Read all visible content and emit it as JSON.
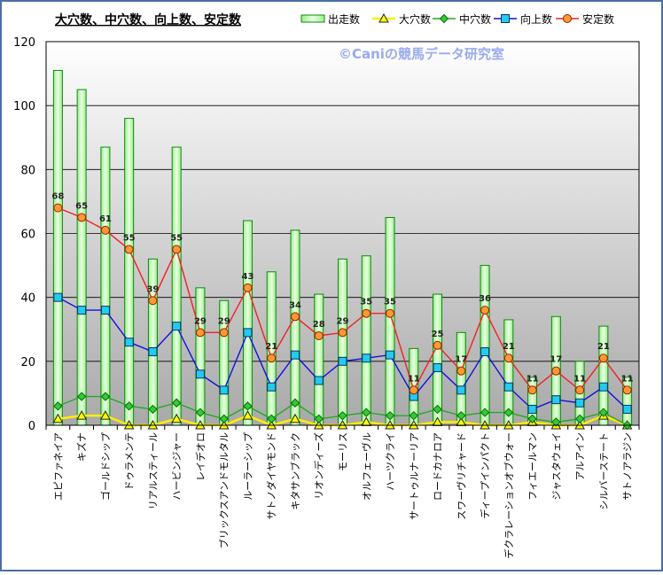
{
  "chart_data": {
    "type": "bar+line",
    "title": "大穴数、中穴数、向上数、安定数",
    "watermark": "©Caniの競馬データ研究室",
    "ylim": [
      0,
      120
    ],
    "y_ticks": [
      "0",
      "20",
      "40",
      "60",
      "80",
      "100",
      "120"
    ],
    "grid": true,
    "legend_position": "top-right",
    "categories": [
      "エピファネイア",
      "キズナ",
      "ゴールドシップ",
      "ドゥラメンテ",
      "リアルスティール",
      "ハービンジャー",
      "レイデオロ",
      "ブリックスアンドモルタル",
      "ルーラーシップ",
      "サトノダイヤモンド",
      "キタサンブラック",
      "リオンディーズ",
      "モーリス",
      "オルフェーヴル",
      "ハーツクライ",
      "サートゥルナーリア",
      "ロードカナロア",
      "スワーヴリチャード",
      "ディープインパクト",
      "デクラレーションオブウォー",
      "フィエールマン",
      "ジャスタウェイ",
      "アルアイン",
      "シルバーステート",
      "サトノアラジン"
    ],
    "series": [
      {
        "name": "出走数",
        "kind": "bar",
        "color": "#22aa22",
        "values": [
          111,
          105,
          87,
          96,
          52,
          87,
          43,
          39,
          64,
          48,
          61,
          41,
          52,
          53,
          65,
          24,
          41,
          29,
          50,
          33,
          15,
          34,
          20,
          31,
          15
        ]
      },
      {
        "name": "大穴数",
        "kind": "line",
        "color": "#ffee00",
        "values": [
          2,
          3,
          3,
          0,
          0,
          2,
          0,
          0,
          3,
          0,
          2,
          0,
          0,
          1,
          0,
          0,
          1,
          1,
          0,
          0,
          1,
          0,
          0,
          3,
          0
        ]
      },
      {
        "name": "中穴数",
        "kind": "line",
        "color": "#22aa22",
        "values": [
          6,
          9,
          9,
          6,
          5,
          7,
          4,
          2,
          6,
          2,
          7,
          2,
          3,
          4,
          3,
          3,
          5,
          3,
          4,
          4,
          2,
          1,
          2,
          4,
          0
        ]
      },
      {
        "name": "向上数",
        "kind": "line",
        "color": "#1111dd",
        "values": [
          40,
          36,
          36,
          26,
          23,
          31,
          16,
          11,
          29,
          12,
          22,
          14,
          20,
          21,
          22,
          9,
          18,
          11,
          23,
          12,
          5,
          8,
          7,
          12,
          5
        ]
      },
      {
        "name": "安定数",
        "kind": "line",
        "color": "#ee2222",
        "values": [
          68,
          65,
          61,
          55,
          39,
          55,
          29,
          29,
          43,
          21,
          34,
          28,
          29,
          35,
          35,
          11,
          25,
          17,
          36,
          21,
          11,
          17,
          11,
          21,
          11
        ]
      }
    ],
    "data_labels_series": "安定数"
  }
}
